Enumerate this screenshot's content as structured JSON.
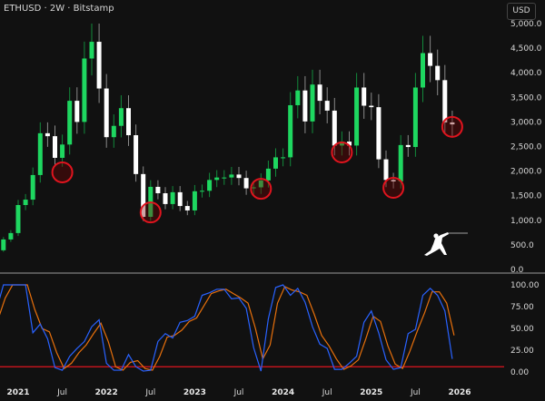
{
  "header": {
    "title": "ETHUSD · 2W · Bitstamp",
    "currency_button": "USD"
  },
  "colors": {
    "up": "#1ed760",
    "down": "#ffffff",
    "k_line": "#2962ff",
    "d_line": "#e8700c",
    "reference_line": "#e0141e",
    "highlight_circle": "#e0141e"
  },
  "logo": {
    "icon": "fencer-icon"
  },
  "chart_data": [
    {
      "type": "candlestick",
      "symbol": "ETHUSD",
      "interval": "2W",
      "exchange": "Bitstamp",
      "months": [
        "2020-10",
        "2020-11",
        "2020-12",
        "2021-01",
        "2021-02",
        "2021-03",
        "2021-04",
        "2021-05",
        "2021-06",
        "2021-07",
        "2021-08",
        "2021-09",
        "2021-10",
        "2021-11",
        "2021-12",
        "2022-01",
        "2022-02",
        "2022-03",
        "2022-04",
        "2022-05",
        "2022-06",
        "2022-07",
        "2022-08",
        "2022-09",
        "2022-10",
        "2022-11",
        "2022-12",
        "2023-01",
        "2023-02",
        "2023-03",
        "2023-04",
        "2023-05",
        "2023-06",
        "2023-07",
        "2023-08",
        "2023-09",
        "2023-10",
        "2023-11",
        "2023-12",
        "2024-01",
        "2024-02",
        "2024-03",
        "2024-04",
        "2024-05",
        "2024-06",
        "2024-07",
        "2024-08",
        "2024-09",
        "2024-10",
        "2024-11",
        "2024-12",
        "2025-01",
        "2025-02",
        "2025-03",
        "2025-04",
        "2025-05",
        "2025-06",
        "2025-07",
        "2025-08",
        "2025-09",
        "2025-10",
        "2025-11",
        "2025-12"
      ],
      "close": [
        390,
        610,
        740,
        1310,
        1420,
        1920,
        2770,
        2710,
        2270,
        2540,
        3430,
        3000,
        4290,
        4630,
        3680,
        2690,
        2920,
        3280,
        2730,
        1940,
        1070,
        1680,
        1550,
        1330,
        1570,
        1290,
        1200,
        1590,
        1600,
        1820,
        1870,
        1870,
        1930,
        1860,
        1650,
        1670,
        1810,
        2050,
        2280,
        2280,
        3340,
        3640,
        3010,
        3760,
        3430,
        3230,
        2520,
        2600,
        2520,
        3700,
        3330,
        3300,
        2240,
        1820,
        1790,
        2530,
        2490,
        3700,
        4400,
        4140,
        3850,
        2990,
        2950
      ],
      "y_ticks": [
        "0.0",
        "500.0",
        "1,000.0",
        "1,500.0",
        "2,000.0",
        "2,500.0",
        "3,000.0",
        "3,500.0",
        "4,000.0",
        "4,500.0",
        "5,000.0"
      ],
      "y_tick_values": [
        0,
        500,
        1000,
        1500,
        2000,
        2500,
        3000,
        3500,
        4000,
        4500,
        5000
      ],
      "ylim": [
        0,
        5000
      ],
      "highlights": [
        {
          "date": "2021-07",
          "price": 1975
        },
        {
          "date": "2022-07",
          "price": 1160
        },
        {
          "date": "2023-10",
          "price": 1640
        },
        {
          "date": "2024-09",
          "price": 2380
        },
        {
          "date": "2025-04",
          "price": 1660
        },
        {
          "date": "2025-12",
          "price": 2900
        }
      ],
      "grid": false
    },
    {
      "type": "line",
      "indicator": "Stochastic RSI",
      "series": [
        {
          "values": [
            70,
            100,
            100,
            100,
            100,
            45,
            55,
            38,
            5,
            2,
            18,
            27,
            35,
            52,
            60,
            10,
            2,
            2,
            20,
            6,
            1,
            2,
            35,
            44,
            39,
            57,
            59,
            64,
            88,
            91,
            95,
            95,
            84,
            85,
            73,
            28,
            1,
            61,
            97,
            100,
            88,
            96,
            80,
            52,
            32,
            27,
            3,
            3,
            10,
            18,
            57,
            70,
            45,
            14,
            3,
            5,
            44,
            49,
            88,
            96,
            88,
            70,
            15
          ]
        },
        {
          "values": [
            60,
            85,
            100,
            100,
            100,
            72,
            50,
            46,
            22,
            4,
            10,
            22,
            31,
            44,
            56,
            35,
            6,
            2,
            11,
            13,
            4,
            2,
            18,
            40,
            42,
            48,
            58,
            62,
            76,
            90,
            93,
            95,
            90,
            85,
            79,
            50,
            15,
            31,
            79,
            98,
            94,
            92,
            88,
            66,
            42,
            30,
            15,
            3,
            7,
            14,
            38,
            64,
            58,
            30,
            9,
            4,
            24,
            47,
            68,
            92,
            92,
            79,
            42
          ]
        }
      ],
      "y_ticks": [
        "0.00",
        "25.00",
        "50.00",
        "75.00",
        "100.00"
      ],
      "y_tick_values": [
        0,
        25,
        50,
        75,
        100
      ],
      "ylim": [
        0,
        100
      ],
      "reference_level": 6
    }
  ],
  "time_axis": {
    "labels": [
      "2021",
      "Jul",
      "2022",
      "Jul",
      "2023",
      "Jul",
      "2024",
      "Jul",
      "2025",
      "Jul",
      "2026"
    ],
    "dates": [
      "2021-01",
      "2021-07",
      "2022-01",
      "2022-07",
      "2023-01",
      "2023-07",
      "2024-01",
      "2024-07",
      "2025-01",
      "2025-07",
      "2026-01"
    ],
    "major": [
      true,
      false,
      true,
      false,
      true,
      false,
      true,
      false,
      true,
      false,
      true
    ]
  }
}
